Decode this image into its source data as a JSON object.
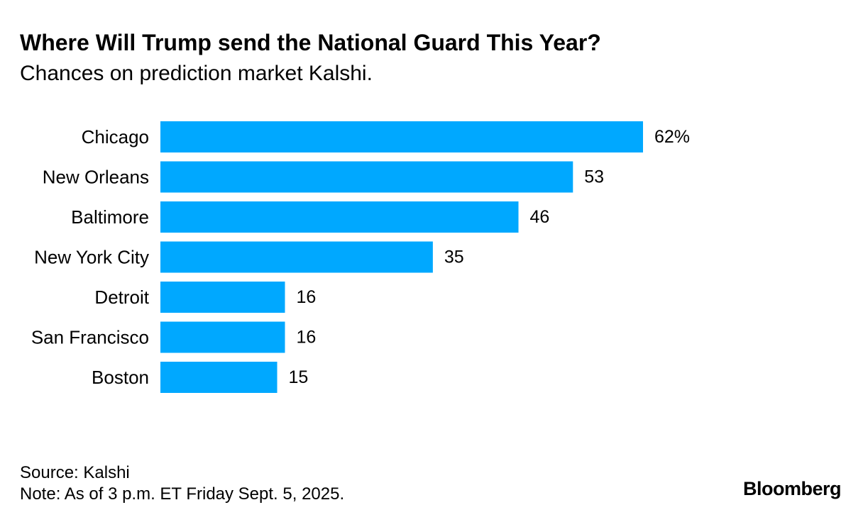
{
  "title": "Where Will Trump send the National Guard This Year?",
  "subtitle": "Chances on prediction market Kalshi.",
  "source": "Source: Kalshi",
  "note": "Note: As of 3 p.m. ET Friday Sept. 5, 2025.",
  "brand": "Bloomberg",
  "colors": {
    "bar": "#00a8ff",
    "text": "#000000",
    "background": "#ffffff"
  },
  "chart_data": {
    "type": "bar",
    "orientation": "horizontal",
    "categories": [
      "Chicago",
      "New Orleans",
      "Baltimore",
      "New York City",
      "Detroit",
      "San Francisco",
      "Boston"
    ],
    "values": [
      62,
      53,
      46,
      35,
      16,
      16,
      15
    ],
    "value_labels": [
      "62%",
      "53",
      "46",
      "35",
      "16",
      "16",
      "15"
    ],
    "unit": "%",
    "xlim": [
      0,
      62
    ],
    "grid": false,
    "legend": "none"
  }
}
